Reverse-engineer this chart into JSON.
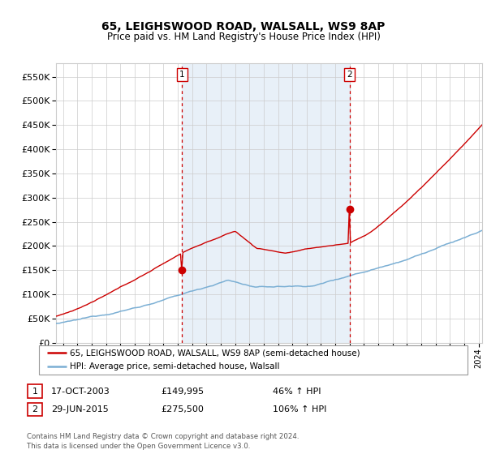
{
  "title": "65, LEIGHSWOOD ROAD, WALSALL, WS9 8AP",
  "subtitle": "Price paid vs. HM Land Registry's House Price Index (HPI)",
  "legend_line1": "65, LEIGHSWOOD ROAD, WALSALL, WS9 8AP (semi-detached house)",
  "legend_line2": "HPI: Average price, semi-detached house, Walsall",
  "annotation1_date": "17-OCT-2003",
  "annotation1_price": "£149,995",
  "annotation1_hpi": "46% ↑ HPI",
  "annotation2_date": "29-JUN-2015",
  "annotation2_price": "£275,500",
  "annotation2_hpi": "106% ↑ HPI",
  "footer": "Contains HM Land Registry data © Crown copyright and database right 2024.\nThis data is licensed under the Open Government Licence v3.0.",
  "ylim": [
    0,
    577000
  ],
  "yticks": [
    0,
    50000,
    100000,
    150000,
    200000,
    250000,
    300000,
    350000,
    400000,
    450000,
    500000,
    550000
  ],
  "red_color": "#cc0000",
  "blue_color": "#7bafd4",
  "shade_color": "#e8f0f8",
  "bg_color": "#ffffff",
  "grid_color": "#cccccc",
  "sale1_x": 2003.79,
  "sale1_y": 149995,
  "sale2_x": 2015.49,
  "sale2_y": 275500,
  "xmin": 1995.0,
  "xmax": 2024.75,
  "start_year": 1995.0,
  "end_year": 2024.75
}
